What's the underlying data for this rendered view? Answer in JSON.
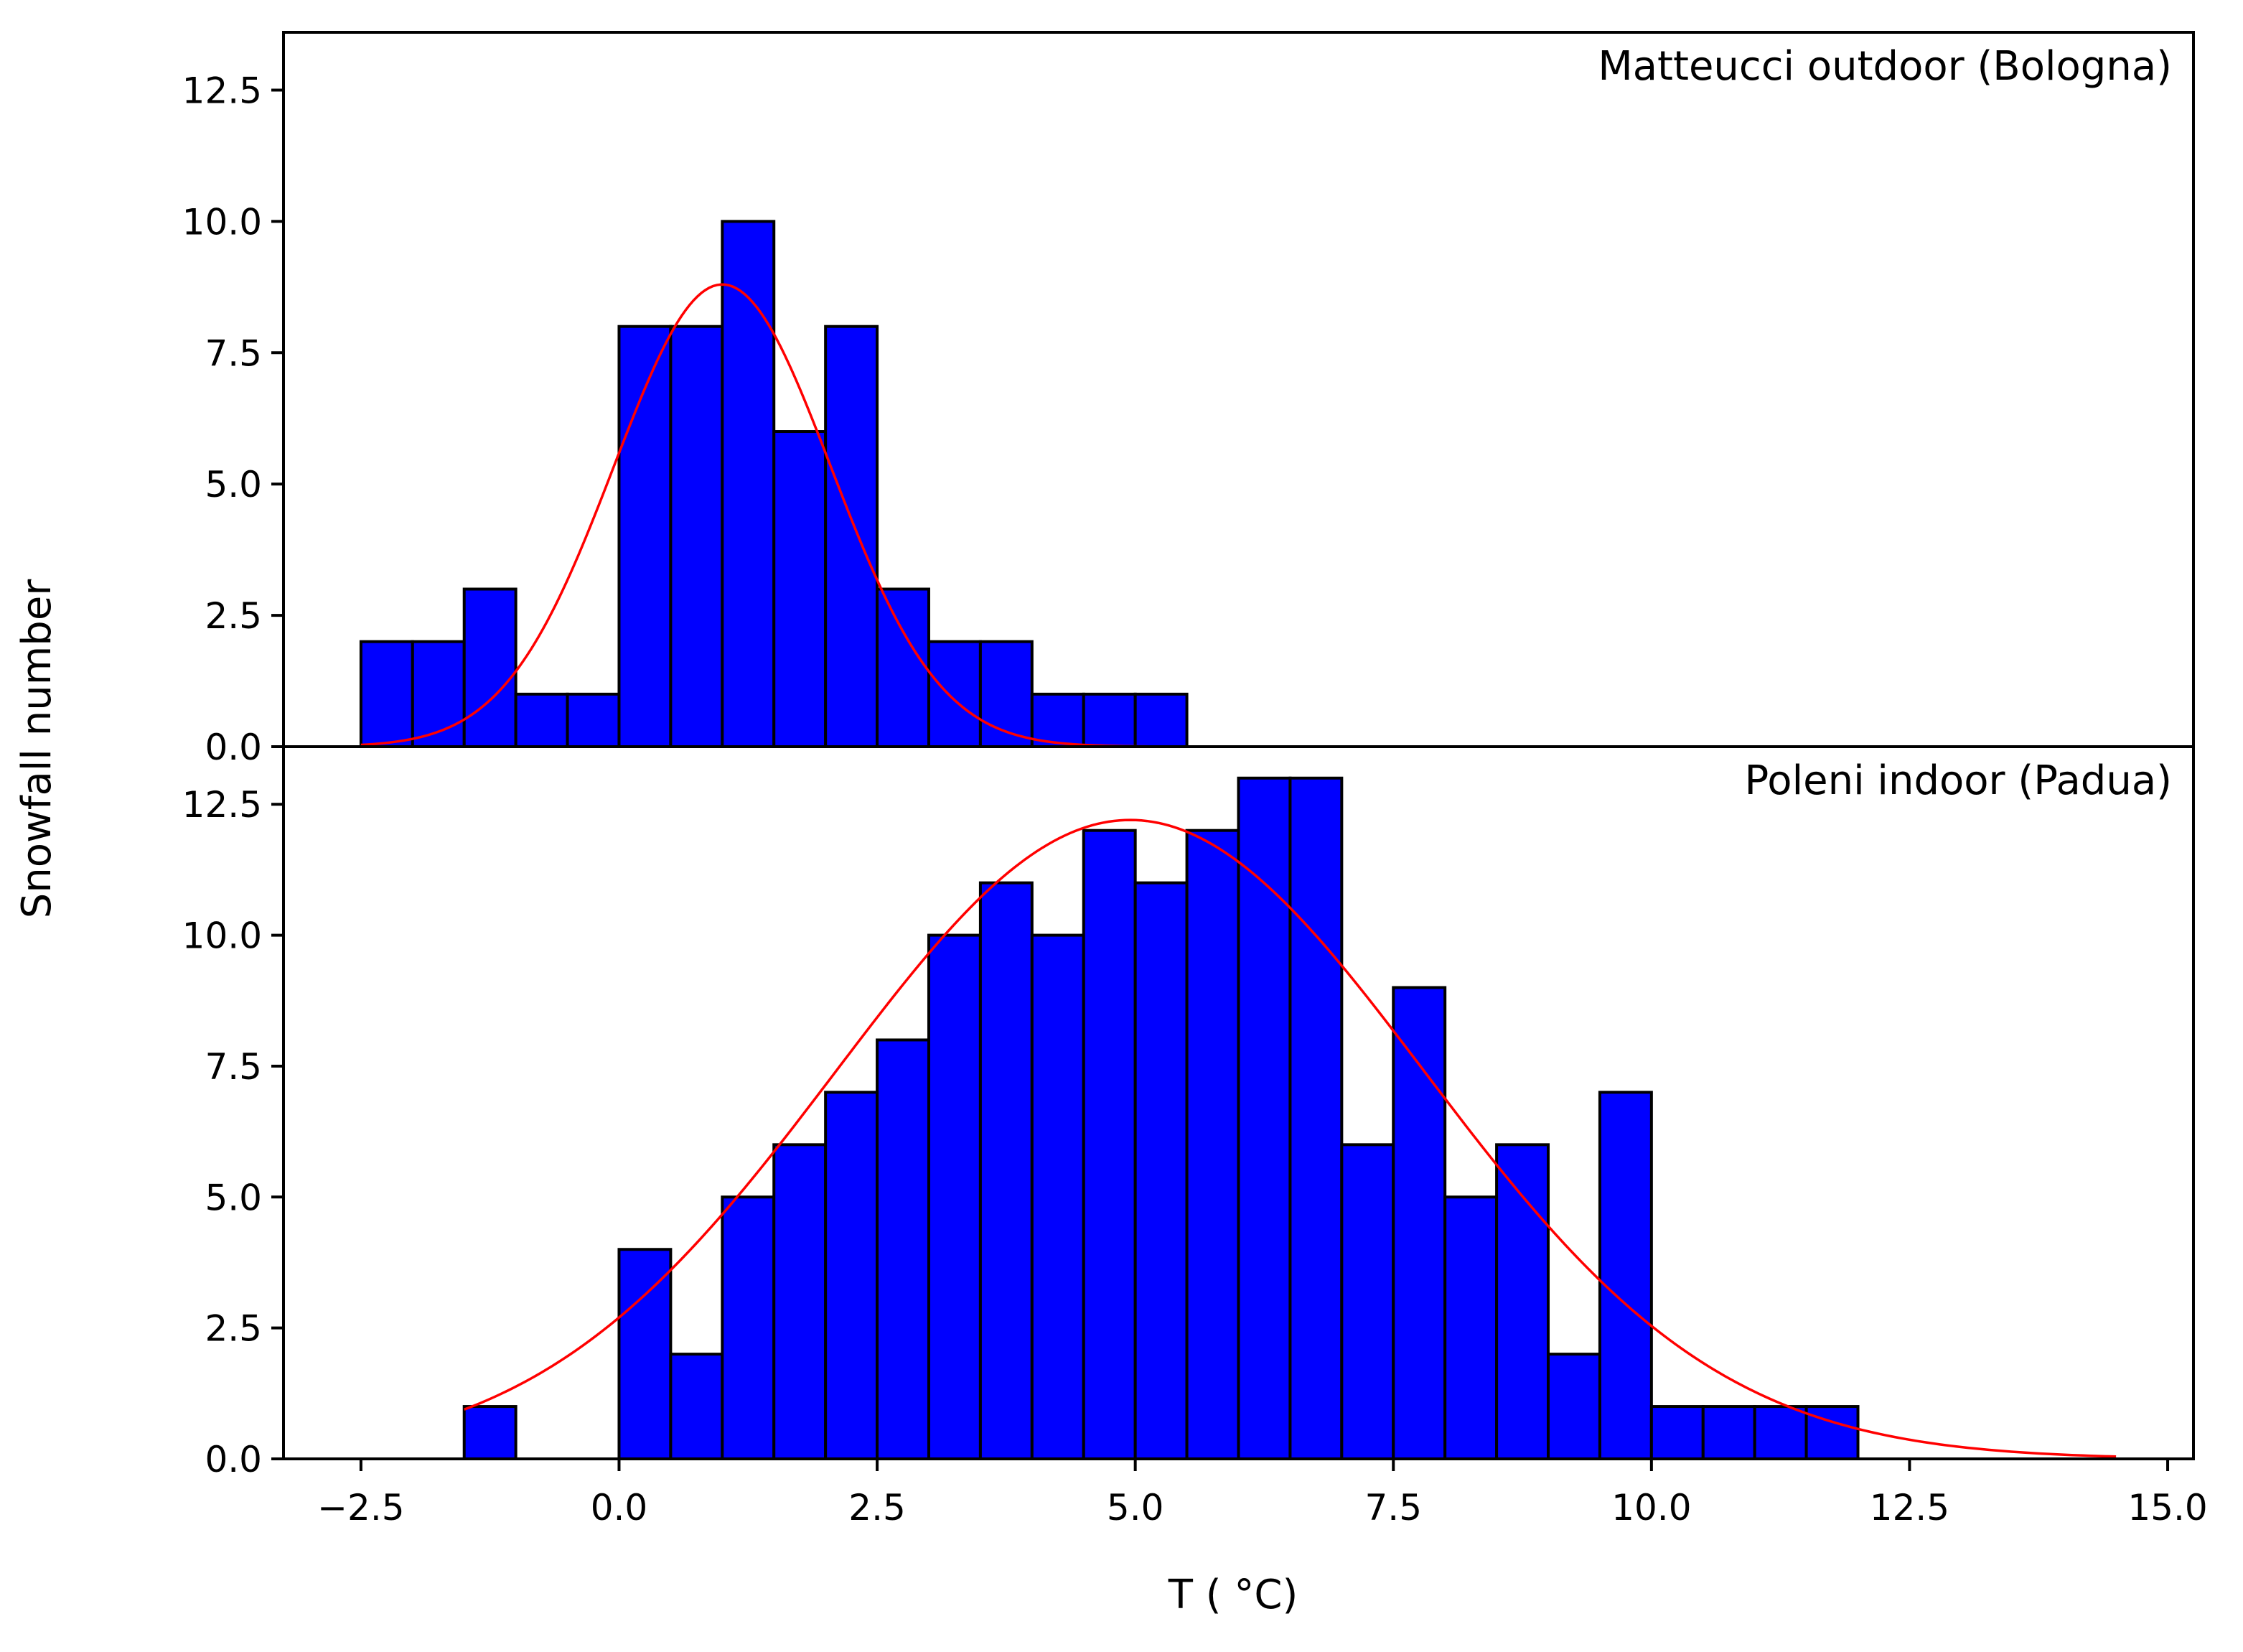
{
  "chart_data": {
    "type": "bar",
    "ylabel": "Snowfall number",
    "xlabel": "T ($^\\circ$C)",
    "xlim": [
      -3.25,
      15.25
    ],
    "xticks": [
      -2.5,
      0.0,
      2.5,
      5.0,
      7.5,
      10.0,
      12.5,
      15.0
    ],
    "xtick_labels": [
      "−2.5",
      "0.0",
      "2.5",
      "5.0",
      "7.5",
      "10.0",
      "12.5",
      "15.0"
    ],
    "bin_width": 0.5,
    "bar_color": "#0000ff",
    "edge_color": "#000000",
    "fit_color": "#ff0000",
    "panels": [
      {
        "title": "Matteucci outdoor (Bologna)",
        "ylim": [
          0,
          13.6
        ],
        "yticks": [
          0.0,
          2.5,
          5.0,
          7.5,
          10.0,
          12.5
        ],
        "ytick_labels": [
          "0.0",
          "2.5",
          "5.0",
          "7.5",
          "10.0",
          "12.5"
        ],
        "bin_starts": [
          -2.5,
          -2.0,
          -1.5,
          -1.0,
          -0.5,
          0.0,
          0.5,
          1.0,
          1.5,
          2.0,
          2.5,
          3.0,
          3.5,
          4.0,
          4.5,
          5.0
        ],
        "counts": [
          2,
          2,
          3,
          1,
          1,
          8,
          8,
          10,
          6,
          8,
          3,
          2,
          2,
          1,
          1,
          1
        ],
        "fit": {
          "mean": 1.0,
          "sigma": 1.05,
          "peak": 8.8,
          "x_start": -2.5,
          "x_end": 9.0
        }
      },
      {
        "title": "Poleni indoor (Padua)",
        "ylim": [
          0,
          13.6
        ],
        "yticks": [
          0.0,
          2.5,
          5.0,
          7.5,
          10.0,
          12.5
        ],
        "ytick_labels": [
          "0.0",
          "2.5",
          "5.0",
          "7.5",
          "10.0",
          "12.5"
        ],
        "bin_starts": [
          -1.5,
          -1.0,
          -0.5,
          0.0,
          0.5,
          1.0,
          1.5,
          2.0,
          2.5,
          3.0,
          3.5,
          4.0,
          4.5,
          5.0,
          5.5,
          6.0,
          6.5,
          7.0,
          7.5,
          8.0,
          8.5,
          9.0,
          9.5,
          10.0,
          10.5,
          11.0,
          11.5
        ],
        "counts": [
          1,
          0,
          0,
          4,
          2,
          5,
          6,
          7,
          8,
          10,
          11,
          10,
          12,
          11,
          12,
          13,
          13,
          6,
          9,
          5,
          6,
          2,
          7,
          1,
          1,
          1,
          1
        ],
        "fit": {
          "mean": 4.95,
          "sigma": 2.85,
          "peak": 12.2,
          "x_start": -1.5,
          "x_end": 14.5
        }
      }
    ]
  }
}
